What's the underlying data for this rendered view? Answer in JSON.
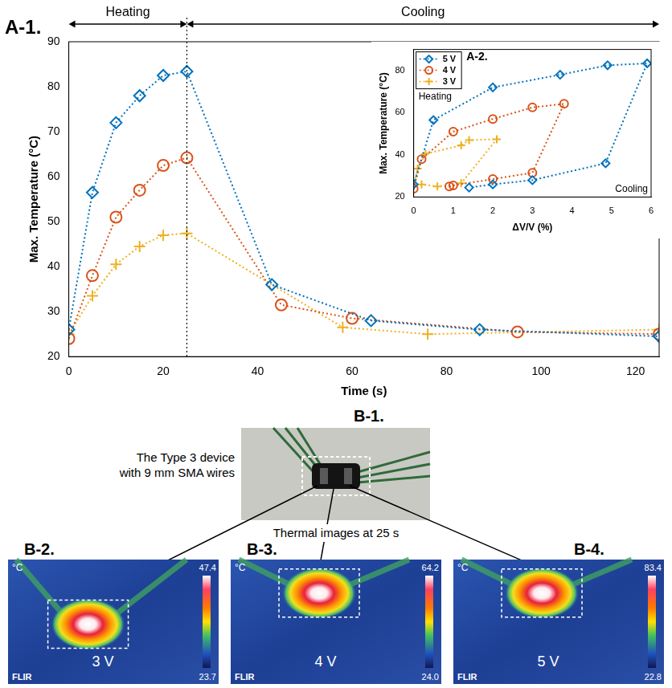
{
  "chart_data": [
    {
      "type": "line",
      "panel_label": "A-1.",
      "x_label": "Time (s)",
      "y_label": "Max. Temperature (°C)",
      "annotations": [
        "Heating",
        "Cooling"
      ],
      "divider_x": 25,
      "xlim": [
        0,
        125
      ],
      "xticks": [
        0,
        20,
        40,
        60,
        80,
        100,
        120
      ],
      "ylim": [
        20,
        90
      ],
      "yticks": [
        20,
        30,
        40,
        50,
        60,
        70,
        80,
        90
      ],
      "grid": false,
      "series": [
        {
          "color": "#0072bd",
          "marker": "diamond",
          "line_style": "dotted",
          "x": [
            0,
            5,
            10,
            15,
            20,
            25,
            43,
            64,
            87,
            125
          ],
          "values": [
            26,
            56.5,
            72,
            78,
            82.5,
            83.4,
            36,
            28,
            26,
            24.5
          ]
        },
        {
          "color": "#d95319",
          "marker": "circle",
          "line_style": "dotted",
          "x": [
            0,
            5,
            10,
            15,
            20,
            25,
            45,
            60,
            95,
            125
          ],
          "values": [
            24,
            38,
            51,
            57,
            62.5,
            64.2,
            31.5,
            28.5,
            25.5,
            25
          ]
        },
        {
          "color": "#edb120",
          "marker": "plus",
          "line_style": "dotted",
          "x": [
            0,
            5,
            10,
            15,
            20,
            25,
            58,
            76,
            125
          ],
          "values": [
            25,
            33.5,
            40.5,
            44.5,
            47,
            47.4,
            26.5,
            25,
            26
          ]
        }
      ]
    },
    {
      "type": "line",
      "panel_label": "A-2.",
      "x_label": "ΔV/V (%)",
      "y_label": "Max. Temperature (°C)",
      "annotations": [
        "Heating",
        "Cooling"
      ],
      "legend": "upper left",
      "xlim": [
        0,
        6
      ],
      "xticks": [
        0,
        1,
        2,
        3,
        4,
        5,
        6
      ],
      "ylim": [
        20,
        90
      ],
      "yticks": [
        20,
        40,
        60,
        80
      ],
      "grid": false,
      "series": [
        {
          "name": "5 V",
          "color": "#0072bd",
          "marker": "diamond",
          "line_style": "dotted",
          "x": [
            0,
            0.5,
            2,
            3.7,
            4.9,
            5.9,
            4.85,
            3,
            2,
            1.4
          ],
          "values": [
            26,
            56.5,
            72,
            78,
            82.5,
            83.4,
            36,
            28,
            26,
            24.5
          ]
        },
        {
          "name": "4 V",
          "color": "#d95319",
          "marker": "circle",
          "line_style": "dotted",
          "x": [
            0,
            0.2,
            1,
            2,
            3,
            3.8,
            3,
            2,
            1,
            0.9
          ],
          "values": [
            24,
            38,
            51,
            57,
            62.5,
            64.2,
            31.5,
            28.5,
            25.5,
            25
          ]
        },
        {
          "name": "3 V",
          "color": "#edb120",
          "marker": "plus",
          "line_style": "dotted",
          "x": [
            0,
            0.1,
            0.3,
            1.2,
            1.4,
            2.1,
            1.2,
            0.6,
            0.2
          ],
          "values": [
            25,
            33.5,
            40.5,
            44.5,
            47,
            47.4,
            26.5,
            25,
            26
          ]
        }
      ]
    }
  ],
  "figure": {
    "photo": {
      "panel_label": "B-1.",
      "caption": "The Type 3 device with 9 mm SMA wires"
    },
    "subtitle": "Thermal images at 25 s",
    "thermal_images": [
      {
        "panel_label": "B-2.",
        "voltage_label": "3 V",
        "unit": "°C",
        "brand": "FLIR",
        "colorbar_ticks": [
          23.7,
          47.4
        ]
      },
      {
        "panel_label": "B-3.",
        "voltage_label": "4 V",
        "unit": "°C",
        "brand": "FLIR",
        "colorbar_ticks": [
          {
            "value": 24,
            "label": "24.0"
          },
          64.2
        ]
      },
      {
        "panel_label": "B-4.",
        "voltage_label": "5 V",
        "unit": "°C",
        "brand": "FLIR",
        "colorbar_ticks": [
          22.8,
          83.4
        ]
      }
    ]
  }
}
